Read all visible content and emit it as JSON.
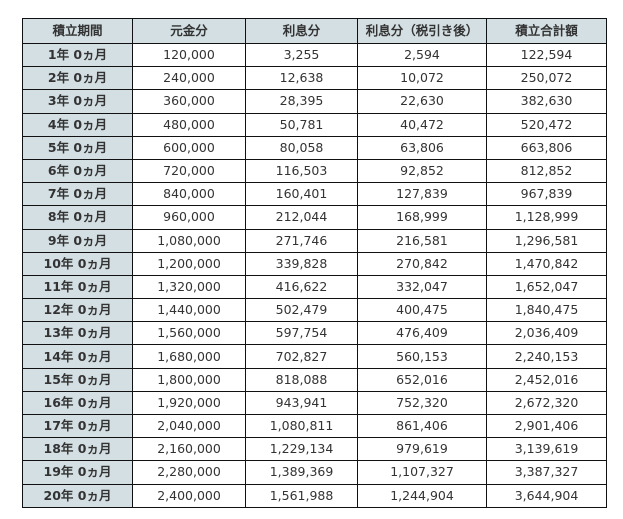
{
  "table": {
    "headers": [
      "積立期間",
      "元金分",
      "利息分",
      "利息分（税引き後）",
      "積立合計額"
    ],
    "rows": [
      [
        "1年 0ヵ月",
        "120,000",
        "3,255",
        "2,594",
        "122,594"
      ],
      [
        "2年 0ヵ月",
        "240,000",
        "12,638",
        "10,072",
        "250,072"
      ],
      [
        "3年 0ヵ月",
        "360,000",
        "28,395",
        "22,630",
        "382,630"
      ],
      [
        "4年 0ヵ月",
        "480,000",
        "50,781",
        "40,472",
        "520,472"
      ],
      [
        "5年 0ヵ月",
        "600,000",
        "80,058",
        "63,806",
        "663,806"
      ],
      [
        "6年 0ヵ月",
        "720,000",
        "116,503",
        "92,852",
        "812,852"
      ],
      [
        "7年 0ヵ月",
        "840,000",
        "160,401",
        "127,839",
        "967,839"
      ],
      [
        "8年 0ヵ月",
        "960,000",
        "212,044",
        "168,999",
        "1,128,999"
      ],
      [
        "9年 0ヵ月",
        "1,080,000",
        "271,746",
        "216,581",
        "1,296,581"
      ],
      [
        "10年 0ヵ月",
        "1,200,000",
        "339,828",
        "270,842",
        "1,470,842"
      ],
      [
        "11年 0ヵ月",
        "1,320,000",
        "416,622",
        "332,047",
        "1,652,047"
      ],
      [
        "12年 0ヵ月",
        "1,440,000",
        "502,479",
        "400,475",
        "1,840,475"
      ],
      [
        "13年 0ヵ月",
        "1,560,000",
        "597,754",
        "476,409",
        "2,036,409"
      ],
      [
        "14年 0ヵ月",
        "1,680,000",
        "702,827",
        "560,153",
        "2,240,153"
      ],
      [
        "15年 0ヵ月",
        "1,800,000",
        "818,088",
        "652,016",
        "2,452,016"
      ],
      [
        "16年 0ヵ月",
        "1,920,000",
        "943,941",
        "752,320",
        "2,672,320"
      ],
      [
        "17年 0ヵ月",
        "2,040,000",
        "1,080,811",
        "861,406",
        "2,901,406"
      ],
      [
        "18年 0ヵ月",
        "2,160,000",
        "1,229,134",
        "979,619",
        "3,139,619"
      ],
      [
        "19年 0ヵ月",
        "2,280,000",
        "1,389,369",
        "1,107,327",
        "3,387,327"
      ],
      [
        "20年 0ヵ月",
        "2,400,000",
        "1,561,988",
        "1,244,904",
        "3,644,904"
      ]
    ]
  },
  "colors": {
    "header_bg": "#d3dfe3",
    "border": "#111111"
  }
}
